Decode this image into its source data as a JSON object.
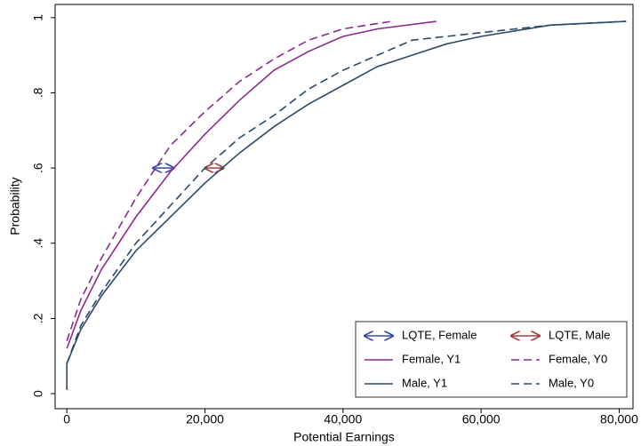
{
  "chart_data": {
    "type": "line",
    "xlabel": "Potential Earnings",
    "ylabel": "Probability",
    "xlim": [
      -1700,
      82000
    ],
    "ylim": [
      -0.04,
      1.035
    ],
    "xticks": [
      0,
      {
        "value": 20000,
        "label": "20,000"
      },
      {
        "value": 40000,
        "label": "40,000"
      },
      {
        "value": 60000,
        "label": "60,000"
      },
      {
        "value": 80000,
        "label": "80,000"
      }
    ],
    "yticks": [
      0,
      {
        "value": 0.2,
        "label": ".2"
      },
      {
        "value": 0.4,
        "label": ".4"
      },
      {
        "value": 0.6,
        "label": ".6"
      },
      {
        "value": 0.8,
        "label": ".8"
      },
      1
    ],
    "legend": "bottom-right",
    "series": [
      {
        "name": "LQTE, Female",
        "color": "#3c4aa0",
        "style": "arrow",
        "x": [
          12500,
          15500
        ],
        "values": [
          0.6,
          0.6
        ]
      },
      {
        "name": "LQTE, Male",
        "color": "#a04040",
        "style": "arrow",
        "x": [
          20000,
          22700
        ],
        "values": [
          0.6,
          0.6
        ]
      },
      {
        "name": "Female, Y1",
        "color": "#8b2a8b",
        "style": "solid",
        "x": [
          0,
          2000,
          5000,
          10000,
          15000,
          20000,
          25000,
          30000,
          35000,
          40000,
          45000,
          53500
        ],
        "values": [
          0.12,
          0.22,
          0.33,
          0.47,
          0.59,
          0.69,
          0.78,
          0.86,
          0.91,
          0.95,
          0.97,
          0.99
        ]
      },
      {
        "name": "Female, Y0",
        "color": "#8b2a8b",
        "style": "dash",
        "x": [
          0,
          2000,
          5000,
          10000,
          15000,
          20000,
          25000,
          30000,
          35000,
          40000,
          47000
        ],
        "values": [
          0.14,
          0.25,
          0.36,
          0.52,
          0.66,
          0.75,
          0.83,
          0.89,
          0.94,
          0.97,
          0.99
        ]
      },
      {
        "name": "Male, Y1",
        "color": "#2a4a6a",
        "style": "solid",
        "x": [
          0,
          0,
          2000,
          5000,
          10000,
          15000,
          20000,
          25000,
          30000,
          35000,
          40000,
          45000,
          50000,
          55000,
          60000,
          70000,
          81000
        ],
        "values": [
          0.01,
          0.08,
          0.17,
          0.26,
          0.38,
          0.47,
          0.56,
          0.64,
          0.71,
          0.77,
          0.82,
          0.87,
          0.9,
          0.93,
          0.95,
          0.98,
          0.99
        ]
      },
      {
        "name": "Male, Y0",
        "color": "#2a4a6a",
        "style": "dash",
        "x": [
          0,
          2000,
          5000,
          10000,
          15000,
          20000,
          25000,
          30000,
          35000,
          40000,
          45000,
          50000,
          55000,
          60000,
          70000,
          81000
        ],
        "values": [
          0.08,
          0.18,
          0.27,
          0.4,
          0.5,
          0.6,
          0.68,
          0.74,
          0.81,
          0.86,
          0.9,
          0.94,
          0.95,
          0.96,
          0.98,
          0.99
        ]
      }
    ]
  }
}
